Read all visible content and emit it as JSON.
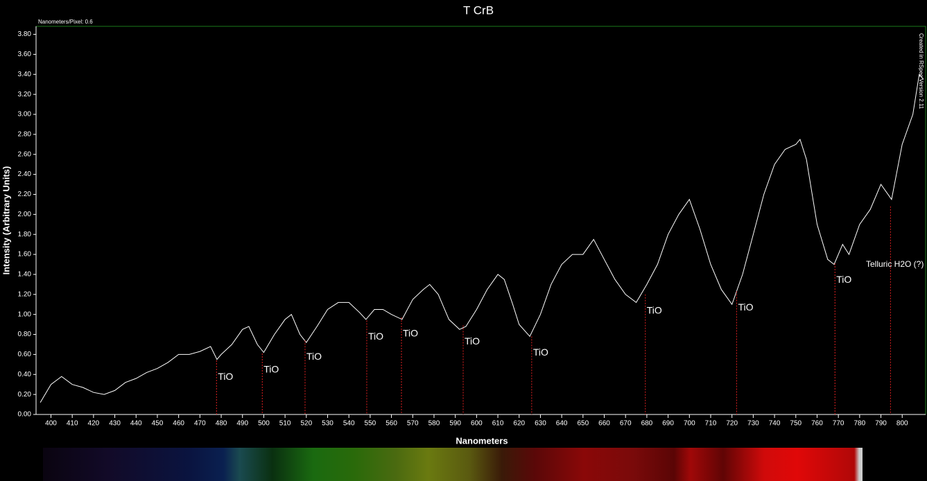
{
  "chart_data": {
    "type": "line",
    "title": "T CrB",
    "subtitle": "Nanometers/Pixel: 0.6",
    "side_note": "Created in RSpec Version 2.11",
    "x_label": "Nanometers",
    "y_label": "Intensity (Arbitrary Units)",
    "xlim": [
      393,
      811
    ],
    "ylim": [
      0,
      3.88
    ],
    "xticks": [
      400,
      410,
      420,
      430,
      440,
      450,
      460,
      470,
      480,
      490,
      500,
      510,
      520,
      530,
      540,
      550,
      560,
      570,
      580,
      590,
      600,
      610,
      620,
      630,
      640,
      650,
      660,
      670,
      680,
      690,
      700,
      710,
      720,
      730,
      740,
      750,
      760,
      770,
      780,
      790,
      800
    ],
    "yticks": [
      {
        "value": 0,
        "label": "0.00"
      },
      {
        "value": 0.2,
        "label": "0.20"
      },
      {
        "value": 0.4,
        "label": "0.40"
      },
      {
        "value": 0.6,
        "label": "0.60"
      },
      {
        "value": 0.8,
        "label": "0.80"
      },
      {
        "value": 1,
        "label": "1.00"
      },
      {
        "value": 1.2,
        "label": "1.20"
      },
      {
        "value": 1.4,
        "label": "1.40"
      },
      {
        "value": 1.6,
        "label": "1.60"
      },
      {
        "value": 1.8,
        "label": "1.80"
      },
      {
        "value": 2,
        "label": "2.00"
      },
      {
        "value": 2.2,
        "label": "2.20"
      },
      {
        "value": 2.4,
        "label": "2.40"
      },
      {
        "value": 2.6,
        "label": "2.60"
      },
      {
        "value": 2.8,
        "label": "2.80"
      },
      {
        "value": 3,
        "label": "3.00"
      },
      {
        "value": 3.2,
        "label": "3.20"
      },
      {
        "value": 3.4,
        "label": "3.40"
      },
      {
        "value": 3.6,
        "label": "3.60"
      },
      {
        "value": 3.8,
        "label": "3.80"
      }
    ],
    "series": [
      {
        "color": "#ffffff",
        "x": [
          395,
          400,
          405,
          410,
          415,
          420,
          425,
          430,
          435,
          440,
          445,
          450,
          455,
          460,
          465,
          470,
          475,
          478,
          480,
          485,
          490,
          493,
          497,
          500,
          505,
          510,
          513,
          517,
          520,
          525,
          530,
          535,
          540,
          545,
          548,
          552,
          556,
          560,
          565,
          570,
          575,
          578,
          582,
          587,
          592,
          595,
          600,
          605,
          610,
          613,
          617,
          620,
          625,
          630,
          635,
          640,
          645,
          650,
          655,
          660,
          665,
          670,
          675,
          680,
          685,
          690,
          695,
          700,
          705,
          710,
          715,
          720,
          725,
          730,
          735,
          740,
          745,
          750,
          752,
          755,
          760,
          765,
          768,
          772,
          775,
          780,
          785,
          790,
          795,
          800,
          805,
          808,
          810
        ],
        "values": [
          0.12,
          0.3,
          0.38,
          0.3,
          0.27,
          0.22,
          0.2,
          0.24,
          0.32,
          0.36,
          0.42,
          0.46,
          0.52,
          0.6,
          0.6,
          0.63,
          0.68,
          0.55,
          0.6,
          0.7,
          0.85,
          0.88,
          0.7,
          0.62,
          0.8,
          0.95,
          1.0,
          0.8,
          0.72,
          0.88,
          1.05,
          1.12,
          1.12,
          1.02,
          0.95,
          1.05,
          1.05,
          1.0,
          0.95,
          1.15,
          1.25,
          1.3,
          1.2,
          0.95,
          0.85,
          0.88,
          1.05,
          1.25,
          1.4,
          1.35,
          1.1,
          0.9,
          0.78,
          1.0,
          1.3,
          1.5,
          1.6,
          1.6,
          1.75,
          1.55,
          1.35,
          1.2,
          1.12,
          1.3,
          1.5,
          1.8,
          2.0,
          2.15,
          1.85,
          1.5,
          1.25,
          1.1,
          1.4,
          1.8,
          2.2,
          2.5,
          2.65,
          2.7,
          2.75,
          2.55,
          1.9,
          1.55,
          1.5,
          1.7,
          1.6,
          1.9,
          2.05,
          2.3,
          2.15,
          2.7,
          3.0,
          3.4,
          3.35
        ]
      }
    ],
    "annotations": [
      {
        "x": 477.8,
        "y": 0.54,
        "text": "TiO"
      },
      {
        "x": 499.3,
        "y": 0.61,
        "text": "TiO"
      },
      {
        "x": 519.4,
        "y": 0.74,
        "text": "TiO"
      },
      {
        "x": 548.4,
        "y": 0.94,
        "text": "TiO"
      },
      {
        "x": 564.7,
        "y": 0.97,
        "text": "TiO"
      },
      {
        "x": 593.7,
        "y": 0.89,
        "text": "TiO"
      },
      {
        "x": 625.9,
        "y": 0.78,
        "text": "TiO"
      },
      {
        "x": 679.3,
        "y": 1.2,
        "text": "TiO"
      },
      {
        "x": 722.2,
        "y": 1.23,
        "text": "TiO"
      },
      {
        "x": 768.4,
        "y": 1.51,
        "text": "TiO"
      },
      {
        "x": 794.5,
        "y": 2.08,
        "text": "Telluric H2O (?)"
      }
    ]
  }
}
